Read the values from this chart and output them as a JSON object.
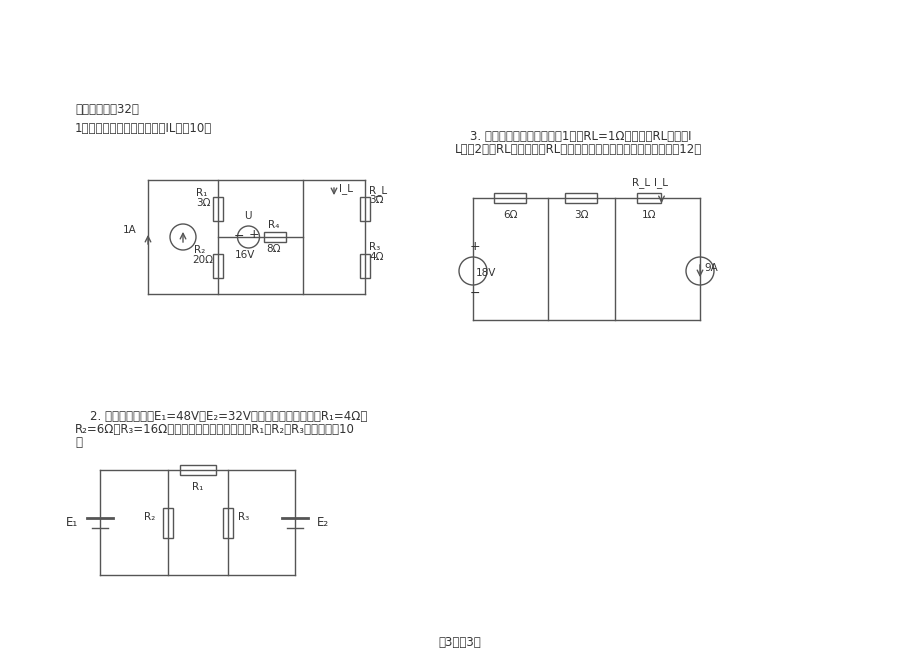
{
  "bg_color": "#ffffff",
  "text_color": "#333333",
  "cc": "#555555",
  "section_title": "四、计算题（32）",
  "q1_text": "1、用回路电流法，求解电流IL。（10）",
  "q2_line1": "    2. 已知电源电动势E₁=48V，E₂=32V，电源内阻不计，电阻R₁=4Ω，",
  "q2_line2": "R₂=6Ω，R₃=16Ω，试用叠加原理求通过电阻R₁、R₂、R₃的电流。（10",
  "q2_line3": "）",
  "q3_line1": "    3. 如所示，用戴维宁定理（1）若RL=1Ω，求电阻RL中电流I",
  "q3_line2": "L；（2）当RL为多大时，RL能获得最大功率，并求出最大功率。（12）",
  "footer": "第3页共3页",
  "lw": 1.0
}
